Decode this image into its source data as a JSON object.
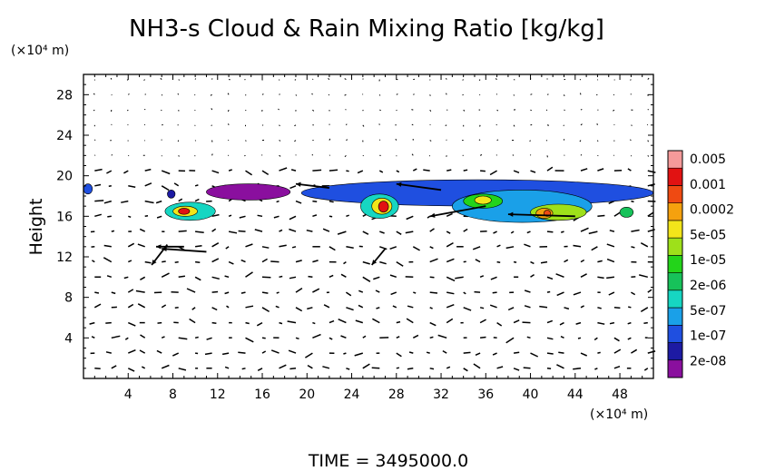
{
  "chart_data": {
    "type": "heatmap",
    "title": "NH3-s Cloud & Rain Mixing Ratio [kg/kg]",
    "ylabel": "Height",
    "y_unit": "(×10⁴ m)",
    "x_unit": "(×10⁴ m)",
    "xlim": [
      0,
      51
    ],
    "ylim": [
      0,
      30
    ],
    "x_ticks": [
      4,
      8,
      12,
      16,
      20,
      24,
      28,
      32,
      36,
      40,
      44,
      48
    ],
    "y_ticks": [
      4,
      8,
      12,
      16,
      20,
      24,
      28
    ],
    "footer": "TIME = 3495000.0",
    "colorbar": {
      "labels": [
        "0.005",
        "0.001",
        "0.0002",
        "5e-05",
        "1e-05",
        "2e-06",
        "5e-07",
        "1e-07",
        "2e-08"
      ],
      "colors": [
        "#8a0f9e",
        "#1d1aa3",
        "#1f4fe0",
        "#1aa0e8",
        "#16d6c2",
        "#17c25a",
        "#23d41a",
        "#9ee01a",
        "#f2e51a",
        "#f5a10e",
        "#ef4a12",
        "#e11212",
        "#f59a9a"
      ]
    },
    "regions": [
      {
        "x0": 0.0,
        "x1": 0.8,
        "y0": 18.2,
        "y1": 19.2,
        "level": 2
      },
      {
        "x0": 7.5,
        "x1": 8.2,
        "y0": 17.8,
        "y1": 18.6,
        "level": 1
      },
      {
        "x0": 11.0,
        "x1": 18.5,
        "y0": 17.6,
        "y1": 19.2,
        "level": 0
      },
      {
        "x0": 19.5,
        "x1": 51.0,
        "y0": 17.0,
        "y1": 19.6,
        "level": 2
      },
      {
        "x0": 7.3,
        "x1": 11.8,
        "y0": 15.6,
        "y1": 17.4,
        "level": 4
      },
      {
        "x0": 8.0,
        "x1": 10.2,
        "y0": 16.0,
        "y1": 17.0,
        "level": 8
      },
      {
        "x0": 8.5,
        "x1": 9.5,
        "y0": 16.2,
        "y1": 16.8,
        "level": 11
      },
      {
        "x0": 24.8,
        "x1": 28.2,
        "y0": 15.8,
        "y1": 18.2,
        "level": 4
      },
      {
        "x0": 25.8,
        "x1": 27.6,
        "y0": 16.2,
        "y1": 17.8,
        "level": 8
      },
      {
        "x0": 26.4,
        "x1": 27.3,
        "y0": 16.4,
        "y1": 17.5,
        "level": 11
      },
      {
        "x0": 33.0,
        "x1": 45.5,
        "y0": 15.4,
        "y1": 18.6,
        "level": 3
      },
      {
        "x0": 34.0,
        "x1": 37.5,
        "y0": 16.8,
        "y1": 18.2,
        "level": 6
      },
      {
        "x0": 35.0,
        "x1": 36.5,
        "y0": 17.2,
        "y1": 18.0,
        "level": 8
      },
      {
        "x0": 40.0,
        "x1": 45.0,
        "y0": 15.6,
        "y1": 17.2,
        "level": 7
      },
      {
        "x0": 40.5,
        "x1": 42.0,
        "y0": 15.8,
        "y1": 16.8,
        "level": 9
      },
      {
        "x0": 41.2,
        "x1": 41.8,
        "y0": 16.0,
        "y1": 16.6,
        "level": 10
      },
      {
        "x0": 48.0,
        "x1": 49.2,
        "y0": 15.9,
        "y1": 16.9,
        "level": 5
      }
    ],
    "wind_arrows": [
      {
        "x": 11,
        "y": 12.5,
        "dx": -4.0,
        "dy": 0.3
      },
      {
        "x": 9,
        "y": 13.0,
        "dx": -2.5,
        "dy": 0.0
      },
      {
        "x": 7.5,
        "y": 13.2,
        "dx": -1.4,
        "dy": -2.0
      },
      {
        "x": 32,
        "y": 18.6,
        "dx": -4.0,
        "dy": 0.6
      },
      {
        "x": 36,
        "y": 17.0,
        "dx": -5.0,
        "dy": -1.0
      },
      {
        "x": 44,
        "y": 16.0,
        "dx": -6.0,
        "dy": 0.2
      },
      {
        "x": 27,
        "y": 12.8,
        "dx": -1.2,
        "dy": -1.6
      },
      {
        "x": 22,
        "y": 18.8,
        "dx": -3.0,
        "dy": 0.4
      }
    ]
  }
}
